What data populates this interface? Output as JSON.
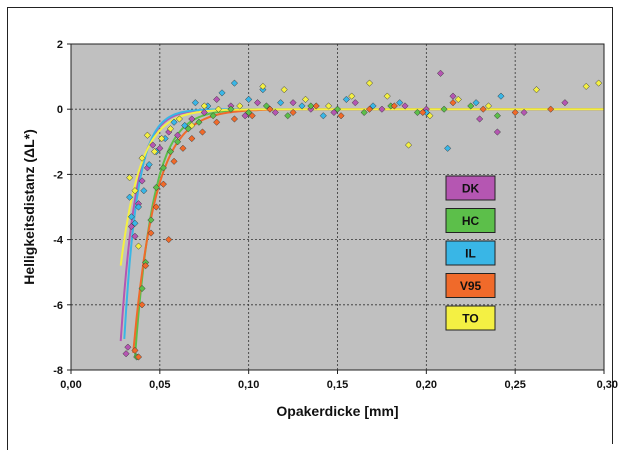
{
  "chart_data": {
    "type": "scatter",
    "title": "",
    "xlabel": "Opakerdicke [mm]",
    "ylabel": "Helligkeitsdistanz (ΔL*)",
    "xlim": [
      0,
      0.3
    ],
    "ylim": [
      -8,
      2
    ],
    "x_ticks": [
      "0,00",
      "0,05",
      "0,10",
      "0,15",
      "0,20",
      "0,25",
      "0,30"
    ],
    "y_ticks": [
      "2",
      "0",
      "-2",
      "-4",
      "-6",
      "-8"
    ],
    "grid": "dashed",
    "plot_background": "#c0c0c0",
    "legend_position": "right-middle",
    "series": [
      {
        "name": "DK",
        "color": "#b556b2",
        "fit": {
          "a": 9.0,
          "x0": 0.026,
          "k": 0.0085
        },
        "points": [
          [
            0.031,
            -7.5
          ],
          [
            0.032,
            -7.3
          ],
          [
            0.034,
            -3.6
          ],
          [
            0.036,
            -3.9
          ],
          [
            0.038,
            -2.9
          ],
          [
            0.04,
            -2.2
          ],
          [
            0.043,
            -1.8
          ],
          [
            0.046,
            -1.1
          ],
          [
            0.05,
            -1.2
          ],
          [
            0.055,
            -0.7
          ],
          [
            0.06,
            -0.8
          ],
          [
            0.068,
            -0.3
          ],
          [
            0.075,
            -0.1
          ],
          [
            0.082,
            0.3
          ],
          [
            0.09,
            0.1
          ],
          [
            0.098,
            -0.2
          ],
          [
            0.105,
            0.2
          ],
          [
            0.115,
            -0.1
          ],
          [
            0.125,
            0.2
          ],
          [
            0.135,
            0.0
          ],
          [
            0.148,
            -0.1
          ],
          [
            0.16,
            0.2
          ],
          [
            0.175,
            0.0
          ],
          [
            0.188,
            0.1
          ],
          [
            0.2,
            0.0
          ],
          [
            0.208,
            1.1
          ],
          [
            0.215,
            0.4
          ],
          [
            0.23,
            -0.3
          ],
          [
            0.24,
            -0.7
          ],
          [
            0.255,
            -0.1
          ],
          [
            0.278,
            0.2
          ]
        ]
      },
      {
        "name": "HC",
        "color": "#5cbf4a",
        "fit": {
          "a": 9.2,
          "x0": 0.034,
          "k": 0.0105
        },
        "points": [
          [
            0.037,
            -7.6
          ],
          [
            0.04,
            -5.5
          ],
          [
            0.042,
            -4.7
          ],
          [
            0.045,
            -3.4
          ],
          [
            0.048,
            -2.4
          ],
          [
            0.052,
            -1.8
          ],
          [
            0.056,
            -1.3
          ],
          [
            0.06,
            -1.0
          ],
          [
            0.066,
            -0.6
          ],
          [
            0.072,
            -0.4
          ],
          [
            0.08,
            -0.2
          ],
          [
            0.09,
            0.0
          ],
          [
            0.1,
            -0.1
          ],
          [
            0.11,
            0.1
          ],
          [
            0.122,
            -0.2
          ],
          [
            0.135,
            0.1
          ],
          [
            0.15,
            0.0
          ],
          [
            0.165,
            -0.1
          ],
          [
            0.18,
            0.1
          ],
          [
            0.195,
            -0.1
          ],
          [
            0.21,
            0.0
          ],
          [
            0.225,
            0.1
          ],
          [
            0.24,
            -0.2
          ]
        ]
      },
      {
        "name": "IL",
        "color": "#39b6e6",
        "fit": {
          "a": 9.2,
          "x0": 0.028,
          "k": 0.0075
        },
        "points": [
          [
            0.033,
            -2.7
          ],
          [
            0.034,
            -3.3
          ],
          [
            0.036,
            -3.5
          ],
          [
            0.038,
            -3.0
          ],
          [
            0.041,
            -2.5
          ],
          [
            0.044,
            -1.7
          ],
          [
            0.048,
            -1.3
          ],
          [
            0.053,
            -0.9
          ],
          [
            0.058,
            -0.4
          ],
          [
            0.064,
            -0.5
          ],
          [
            0.07,
            0.2
          ],
          [
            0.077,
            0.1
          ],
          [
            0.085,
            0.5
          ],
          [
            0.092,
            0.8
          ],
          [
            0.1,
            0.3
          ],
          [
            0.108,
            0.6
          ],
          [
            0.118,
            0.2
          ],
          [
            0.13,
            0.1
          ],
          [
            0.142,
            -0.2
          ],
          [
            0.155,
            0.3
          ],
          [
            0.17,
            0.1
          ],
          [
            0.185,
            0.2
          ],
          [
            0.2,
            -0.1
          ],
          [
            0.212,
            -1.2
          ],
          [
            0.228,
            0.2
          ],
          [
            0.242,
            0.4
          ]
        ]
      },
      {
        "name": "V95",
        "color": "#f06a2a",
        "fit": {
          "a": 9.5,
          "x0": 0.032,
          "k": 0.0125
        },
        "points": [
          [
            0.036,
            -7.4
          ],
          [
            0.038,
            -7.6
          ],
          [
            0.04,
            -6.0
          ],
          [
            0.042,
            -4.8
          ],
          [
            0.045,
            -3.8
          ],
          [
            0.048,
            -3.0
          ],
          [
            0.052,
            -2.3
          ],
          [
            0.055,
            -4.0
          ],
          [
            0.058,
            -1.6
          ],
          [
            0.063,
            -1.2
          ],
          [
            0.068,
            -0.9
          ],
          [
            0.074,
            -0.7
          ],
          [
            0.082,
            -0.4
          ],
          [
            0.092,
            -0.3
          ],
          [
            0.102,
            -0.2
          ],
          [
            0.112,
            0.0
          ],
          [
            0.125,
            -0.1
          ],
          [
            0.138,
            0.1
          ],
          [
            0.152,
            -0.2
          ],
          [
            0.168,
            0.0
          ],
          [
            0.182,
            0.1
          ],
          [
            0.198,
            -0.1
          ],
          [
            0.215,
            0.2
          ],
          [
            0.232,
            0.0
          ],
          [
            0.25,
            -0.1
          ],
          [
            0.27,
            0.0
          ]
        ]
      },
      {
        "name": "TO",
        "color": "#f4f043",
        "fit": {
          "a": 4.0,
          "x0": 0.03,
          "k": 0.011
        },
        "points": [
          [
            0.033,
            -2.1
          ],
          [
            0.036,
            -2.5
          ],
          [
            0.038,
            -4.2
          ],
          [
            0.04,
            -1.5
          ],
          [
            0.043,
            -0.8
          ],
          [
            0.047,
            -1.3
          ],
          [
            0.051,
            -0.9
          ],
          [
            0.056,
            -0.6
          ],
          [
            0.061,
            -0.3
          ],
          [
            0.068,
            -0.5
          ],
          [
            0.075,
            0.1
          ],
          [
            0.083,
            0.0
          ],
          [
            0.095,
            0.1
          ],
          [
            0.108,
            0.7
          ],
          [
            0.12,
            0.6
          ],
          [
            0.132,
            0.3
          ],
          [
            0.145,
            0.1
          ],
          [
            0.158,
            0.4
          ],
          [
            0.168,
            0.8
          ],
          [
            0.178,
            0.4
          ],
          [
            0.19,
            -1.1
          ],
          [
            0.202,
            -0.2
          ],
          [
            0.218,
            0.3
          ],
          [
            0.235,
            0.1
          ],
          [
            0.262,
            0.6
          ],
          [
            0.29,
            0.7
          ],
          [
            0.297,
            0.8
          ]
        ]
      }
    ]
  }
}
